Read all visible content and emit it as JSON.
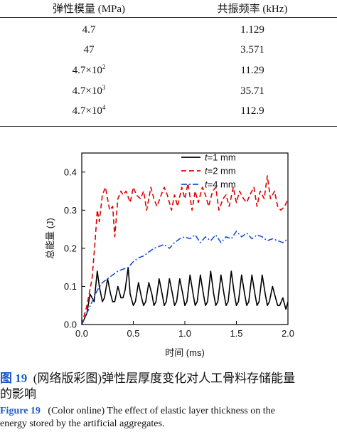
{
  "table": {
    "headers": [
      "弹性模量 (MPa)",
      "共振频率 (kHz)"
    ],
    "rows": [
      {
        "modulus_base": "4.7",
        "modulus_exp": "",
        "freq": "1.129"
      },
      {
        "modulus_base": "47",
        "modulus_exp": "",
        "freq": "3.571"
      },
      {
        "modulus_base": "4.7×10",
        "modulus_exp": "2",
        "freq": "11.29"
      },
      {
        "modulus_base": "4.7×10",
        "modulus_exp": "3",
        "freq": "35.71"
      },
      {
        "modulus_base": "4.7×10",
        "modulus_exp": "4",
        "freq": "112.9"
      }
    ]
  },
  "chart_data": {
    "type": "line",
    "xlabel": "时间 (ms)",
    "ylabel": "总能量 (J)",
    "xlim": [
      0,
      2.0
    ],
    "ylim": [
      0,
      0.45
    ],
    "xticks": [
      "0.0",
      "0.5",
      "1.0",
      "1.5",
      "2.0"
    ],
    "yticks": [
      "0.0",
      "0.1",
      "0.2",
      "0.3",
      "0.4"
    ],
    "legend_position": "top-right",
    "series": [
      {
        "name": "t=1 mm",
        "legend_italic": "t",
        "legend_rest": "=1 mm",
        "color": "#000000",
        "style": "solid",
        "x": [
          0.0,
          0.05,
          0.08,
          0.1,
          0.12,
          0.15,
          0.17,
          0.2,
          0.22,
          0.25,
          0.28,
          0.3,
          0.32,
          0.35,
          0.38,
          0.4,
          0.42,
          0.45,
          0.47,
          0.5,
          0.52,
          0.55,
          0.58,
          0.6,
          0.62,
          0.65,
          0.68,
          0.7,
          0.72,
          0.75,
          0.78,
          0.8,
          0.82,
          0.85,
          0.88,
          0.9,
          0.92,
          0.95,
          0.98,
          1.0,
          1.02,
          1.05,
          1.08,
          1.1,
          1.12,
          1.15,
          1.18,
          1.2,
          1.22,
          1.25,
          1.28,
          1.3,
          1.32,
          1.35,
          1.38,
          1.4,
          1.42,
          1.45,
          1.48,
          1.5,
          1.52,
          1.55,
          1.58,
          1.6,
          1.62,
          1.65,
          1.68,
          1.7,
          1.72,
          1.75,
          1.78,
          1.8,
          1.82,
          1.85,
          1.88,
          1.9,
          1.92,
          1.95,
          1.98,
          2.0
        ],
        "values": [
          0.0,
          0.03,
          0.08,
          0.07,
          0.06,
          0.14,
          0.1,
          0.06,
          0.07,
          0.12,
          0.08,
          0.06,
          0.06,
          0.1,
          0.07,
          0.07,
          0.09,
          0.15,
          0.08,
          0.05,
          0.06,
          0.11,
          0.07,
          0.05,
          0.06,
          0.11,
          0.08,
          0.05,
          0.06,
          0.12,
          0.08,
          0.05,
          0.06,
          0.12,
          0.08,
          0.05,
          0.06,
          0.12,
          0.08,
          0.05,
          0.06,
          0.13,
          0.08,
          0.05,
          0.06,
          0.13,
          0.08,
          0.05,
          0.06,
          0.14,
          0.08,
          0.05,
          0.06,
          0.13,
          0.08,
          0.05,
          0.06,
          0.14,
          0.08,
          0.05,
          0.06,
          0.13,
          0.08,
          0.05,
          0.06,
          0.13,
          0.08,
          0.05,
          0.06,
          0.13,
          0.08,
          0.05,
          0.06,
          0.1,
          0.07,
          0.05,
          0.05,
          0.07,
          0.04,
          0.06
        ]
      },
      {
        "name": "t=2 mm",
        "legend_italic": "t",
        "legend_rest": "=2 mm",
        "color": "#e00000",
        "style": "dashed",
        "x": [
          0.0,
          0.05,
          0.1,
          0.13,
          0.15,
          0.17,
          0.2,
          0.23,
          0.27,
          0.3,
          0.32,
          0.35,
          0.38,
          0.4,
          0.43,
          0.47,
          0.5,
          0.53,
          0.57,
          0.6,
          0.63,
          0.67,
          0.7,
          0.73,
          0.77,
          0.8,
          0.83,
          0.87,
          0.9,
          0.93,
          0.97,
          1.0,
          1.03,
          1.07,
          1.1,
          1.13,
          1.17,
          1.2,
          1.23,
          1.27,
          1.3,
          1.33,
          1.37,
          1.4,
          1.43,
          1.47,
          1.5,
          1.53,
          1.57,
          1.6,
          1.63,
          1.67,
          1.7,
          1.73,
          1.77,
          1.8,
          1.83,
          1.87,
          1.9,
          1.93,
          1.97,
          2.0
        ],
        "values": [
          0.0,
          0.05,
          0.12,
          0.22,
          0.3,
          0.27,
          0.34,
          0.36,
          0.3,
          0.31,
          0.23,
          0.33,
          0.35,
          0.34,
          0.35,
          0.32,
          0.36,
          0.34,
          0.33,
          0.35,
          0.3,
          0.36,
          0.33,
          0.31,
          0.34,
          0.36,
          0.34,
          0.3,
          0.34,
          0.31,
          0.36,
          0.33,
          0.37,
          0.3,
          0.35,
          0.32,
          0.36,
          0.34,
          0.31,
          0.35,
          0.36,
          0.3,
          0.33,
          0.34,
          0.31,
          0.36,
          0.32,
          0.35,
          0.33,
          0.32,
          0.34,
          0.36,
          0.31,
          0.35,
          0.33,
          0.39,
          0.33,
          0.35,
          0.31,
          0.3,
          0.31,
          0.33
        ]
      },
      {
        "name": "t=4 mm",
        "legend_italic": "t",
        "legend_rest": "=4 mm",
        "color": "#1a4fd6",
        "style": "dashdot",
        "x": [
          0.0,
          0.05,
          0.1,
          0.15,
          0.2,
          0.25,
          0.3,
          0.35,
          0.4,
          0.45,
          0.5,
          0.55,
          0.6,
          0.65,
          0.7,
          0.75,
          0.8,
          0.85,
          0.9,
          0.95,
          1.0,
          1.05,
          1.1,
          1.15,
          1.2,
          1.25,
          1.3,
          1.35,
          1.4,
          1.45,
          1.5,
          1.55,
          1.6,
          1.65,
          1.7,
          1.75,
          1.8,
          1.85,
          1.9,
          1.95,
          2.0
        ],
        "values": [
          0.0,
          0.03,
          0.06,
          0.09,
          0.11,
          0.12,
          0.13,
          0.14,
          0.145,
          0.15,
          0.165,
          0.175,
          0.18,
          0.19,
          0.2,
          0.205,
          0.21,
          0.2,
          0.215,
          0.225,
          0.23,
          0.225,
          0.235,
          0.215,
          0.23,
          0.22,
          0.235,
          0.215,
          0.23,
          0.225,
          0.245,
          0.23,
          0.24,
          0.225,
          0.235,
          0.23,
          0.22,
          0.225,
          0.22,
          0.215,
          0.225
        ]
      }
    ]
  },
  "caption": {
    "cn_label": "图 19",
    "cn_line1": "(网络版彩图)弹性层厚度变化对人工骨料存储能量",
    "cn_line2": "的影响",
    "en_label": "Figure 19",
    "en_line1": "(Color online) The effect of elastic layer thickness on the",
    "en_line2": "energy stored by the artificial aggregates."
  }
}
